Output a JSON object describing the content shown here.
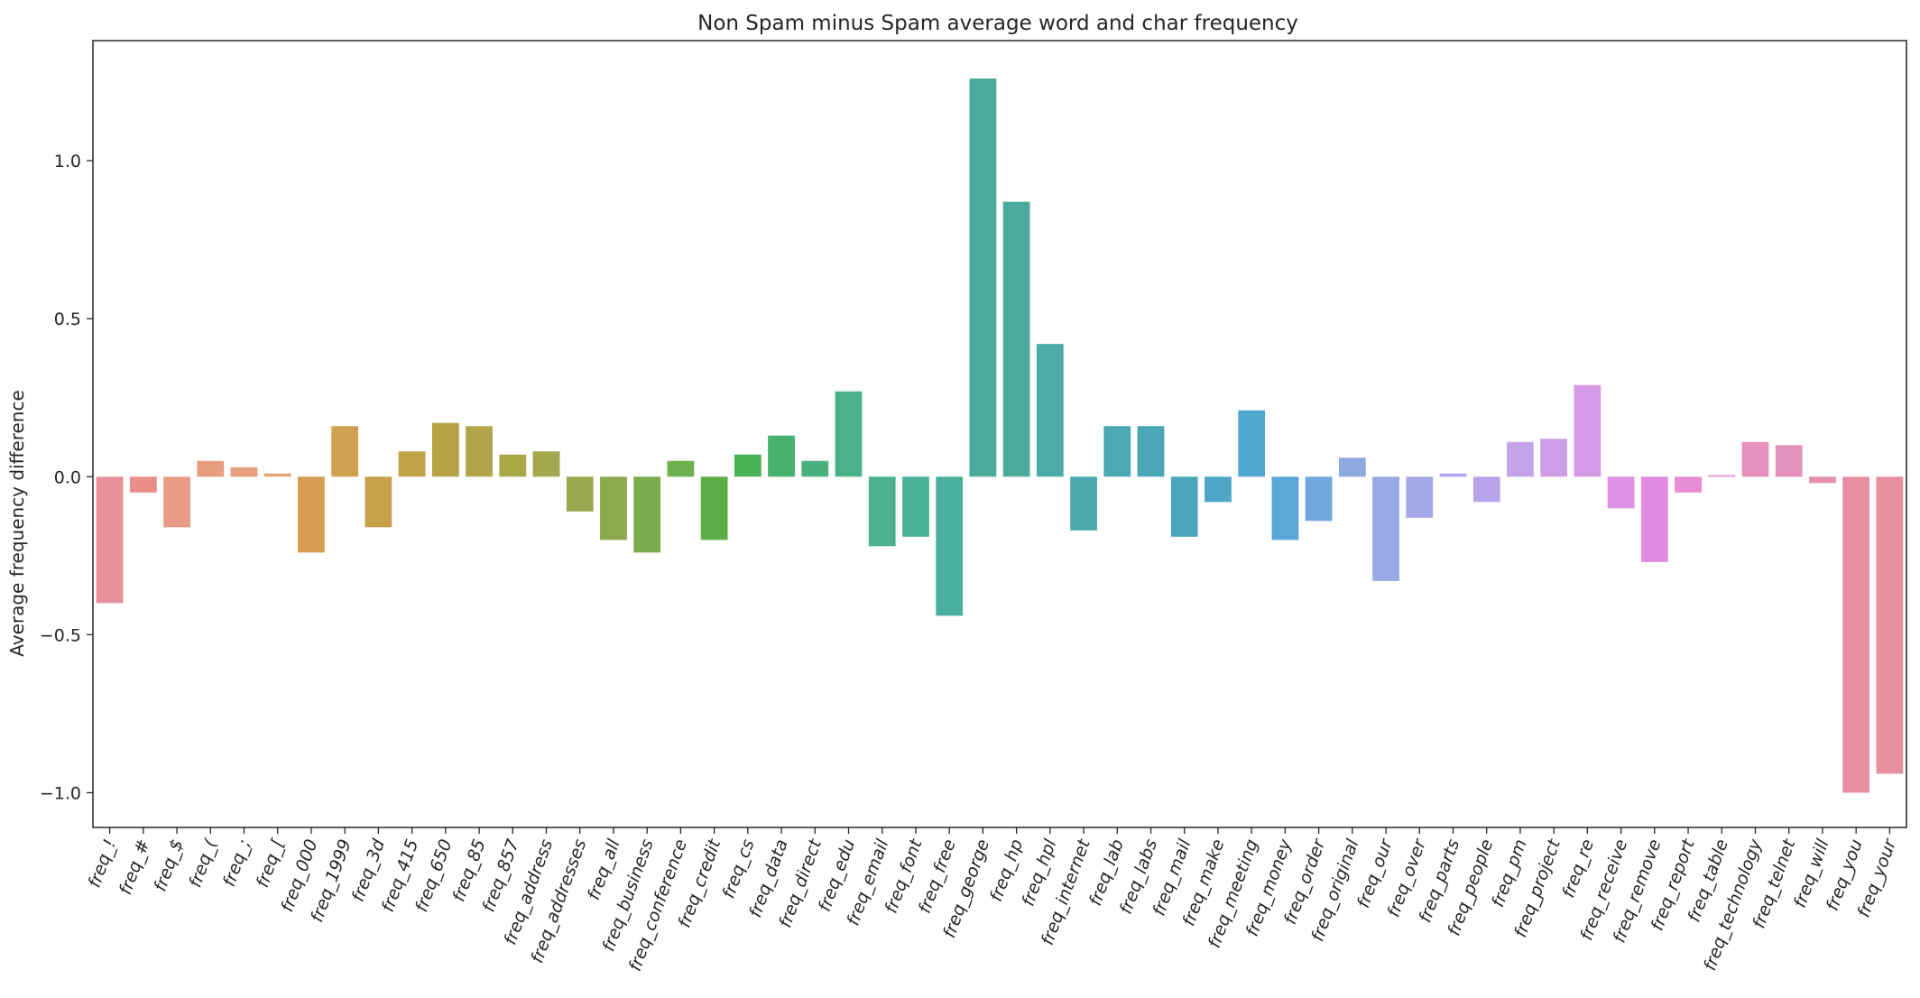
{
  "chart_data": {
    "type": "bar",
    "title": "Non Spam minus Spam average word and char frequency",
    "xlabel": "",
    "ylabel": "Average frequency difference",
    "ylim": [
      -1.11,
      1.38
    ],
    "yticks": [
      -1.0,
      -0.5,
      0.0,
      0.5,
      1.0
    ],
    "ytick_labels": [
      "−1.0",
      "−0.5",
      "0.0",
      "0.5",
      "1.0"
    ],
    "grid": false,
    "legend": "none",
    "categories": [
      "freq_!",
      "freq_#",
      "freq_$",
      "freq_(",
      "freq_;",
      "freq_[",
      "freq_000",
      "freq_1999",
      "freq_3d",
      "freq_415",
      "freq_650",
      "freq_85",
      "freq_857",
      "freq_address",
      "freq_addresses",
      "freq_all",
      "freq_business",
      "freq_conference",
      "freq_credit",
      "freq_cs",
      "freq_data",
      "freq_direct",
      "freq_edu",
      "freq_email",
      "freq_font",
      "freq_free",
      "freq_george",
      "freq_hp",
      "freq_hpl",
      "freq_internet",
      "freq_lab",
      "freq_labs",
      "freq_mail",
      "freq_make",
      "freq_meeting",
      "freq_money",
      "freq_order",
      "freq_original",
      "freq_our",
      "freq_over",
      "freq_parts",
      "freq_people",
      "freq_pm",
      "freq_project",
      "freq_re",
      "freq_receive",
      "freq_remove",
      "freq_report",
      "freq_table",
      "freq_technology",
      "freq_telnet",
      "freq_will",
      "freq_you",
      "freq_your"
    ],
    "values": [
      -0.4,
      -0.05,
      -0.16,
      0.05,
      0.03,
      0.01,
      -0.24,
      0.16,
      -0.16,
      0.08,
      0.17,
      0.16,
      0.07,
      0.08,
      -0.11,
      -0.2,
      -0.24,
      0.05,
      -0.2,
      0.07,
      0.13,
      0.05,
      0.27,
      -0.22,
      -0.19,
      -0.44,
      1.26,
      0.87,
      0.42,
      -0.17,
      0.16,
      0.16,
      -0.19,
      -0.08,
      0.21,
      -0.2,
      -0.14,
      0.06,
      -0.33,
      -0.13,
      0.01,
      -0.08,
      0.11,
      0.12,
      0.29,
      -0.1,
      -0.27,
      -0.05,
      0.005,
      0.11,
      0.1,
      -0.02,
      -1.0,
      -0.94
    ],
    "colors": [
      "#e8909a",
      "#e98e88",
      "#e99a84",
      "#e99d7f",
      "#e7a07c",
      "#e3a472",
      "#d89c53",
      "#ceA04f",
      "#c7a04a",
      "#c2a247",
      "#b7a346",
      "#b1a54a",
      "#aaa747",
      "#a4a74d",
      "#98a84e",
      "#8ca94d",
      "#7aab4a",
      "#6fb04e",
      "#5dae47",
      "#48b153",
      "#47b16d",
      "#49b07c",
      "#4ab189",
      "#4bb08f",
      "#4bb196",
      "#4aaf9c",
      "#4aab9b",
      "#4aab9d",
      "#4aaca5",
      "#4aa9ac",
      "#4aa9b1",
      "#4aa8b6",
      "#4aa6bd",
      "#4ea5c6",
      "#4fa6cf",
      "#5aa7d8",
      "#73a8df",
      "#8da9e0",
      "#97a8e4",
      "#a3a9e7",
      "#ada8e9",
      "#b8a5e9",
      "#c4a3e8",
      "#cd9ee7",
      "#d59ae6",
      "#de93e6",
      "#e289e1",
      "#e68bd4",
      "#e78ec8",
      "#e991bd",
      "#e692bf",
      "#e58fb1",
      "#e88ea4",
      "#e7909c"
    ]
  }
}
